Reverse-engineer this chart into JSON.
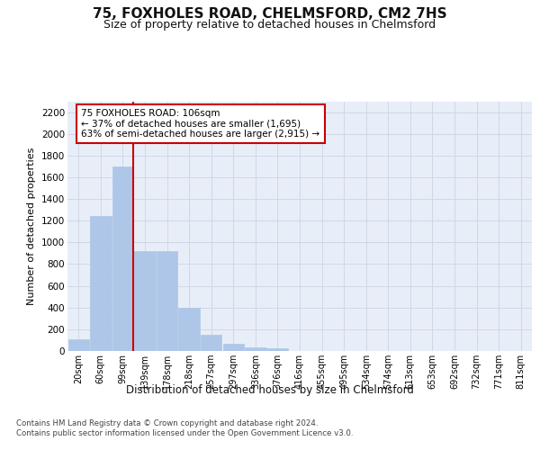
{
  "title_line1": "75, FOXHOLES ROAD, CHELMSFORD, CM2 7HS",
  "title_line2": "Size of property relative to detached houses in Chelmsford",
  "xlabel": "Distribution of detached houses by size in Chelmsford",
  "ylabel": "Number of detached properties",
  "bar_labels": [
    "20sqm",
    "60sqm",
    "99sqm",
    "139sqm",
    "178sqm",
    "218sqm",
    "257sqm",
    "297sqm",
    "336sqm",
    "376sqm",
    "416sqm",
    "455sqm",
    "495sqm",
    "534sqm",
    "574sqm",
    "613sqm",
    "653sqm",
    "692sqm",
    "732sqm",
    "771sqm",
    "811sqm"
  ],
  "bar_values": [
    105,
    1240,
    1700,
    920,
    920,
    400,
    150,
    65,
    35,
    25,
    0,
    0,
    0,
    0,
    0,
    0,
    0,
    0,
    0,
    0,
    0
  ],
  "bar_color": "#aec6e8",
  "grid_color": "#d0d8e8",
  "background_color": "#e8eef8",
  "ylim": [
    0,
    2300
  ],
  "yticks": [
    0,
    200,
    400,
    600,
    800,
    1000,
    1200,
    1400,
    1600,
    1800,
    2000,
    2200
  ],
  "vline_x_index": 2,
  "vline_color": "#cc0000",
  "annotation_text": "75 FOXHOLES ROAD: 106sqm\n← 37% of detached houses are smaller (1,695)\n63% of semi-detached houses are larger (2,915) →",
  "annotation_box_color": "#ffffff",
  "annotation_box_edge_color": "#cc0000",
  "footer_line1": "Contains HM Land Registry data © Crown copyright and database right 2024.",
  "footer_line2": "Contains public sector information licensed under the Open Government Licence v3.0."
}
